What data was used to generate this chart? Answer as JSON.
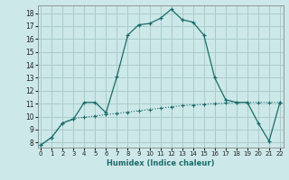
{
  "xlabel": "Humidex (Indice chaleur)",
  "bg_color": "#cde8e8",
  "grid_color": "#aacccc",
  "line_color": "#1a6b6b",
  "x_ticks": [
    0,
    1,
    2,
    3,
    4,
    5,
    6,
    7,
    8,
    9,
    10,
    11,
    12,
    13,
    14,
    15,
    16,
    17,
    18,
    19,
    20,
    21,
    22
  ],
  "y_ticks": [
    8,
    9,
    10,
    11,
    12,
    13,
    14,
    15,
    16,
    17,
    18
  ],
  "xlim": [
    -0.3,
    22.3
  ],
  "ylim": [
    7.6,
    18.6
  ],
  "line1_x": [
    0,
    1,
    2,
    3,
    4,
    5,
    6,
    7,
    8,
    9,
    10,
    11,
    12,
    13,
    14,
    15,
    16,
    17,
    18,
    19,
    20,
    21,
    22
  ],
  "line1_y": [
    7.8,
    8.4,
    9.5,
    9.8,
    11.1,
    11.1,
    10.3,
    13.1,
    16.3,
    17.1,
    17.2,
    17.6,
    18.3,
    17.5,
    17.3,
    16.3,
    13.0,
    11.3,
    11.1,
    11.1,
    9.5,
    8.1,
    11.1
  ],
  "line2_x": [
    0,
    1,
    2,
    3,
    4,
    5,
    6,
    7,
    8,
    9,
    10,
    11,
    12,
    13,
    14,
    15,
    16,
    17,
    18,
    19,
    20,
    21,
    22
  ],
  "line2_y": [
    7.8,
    8.4,
    9.5,
    9.85,
    9.95,
    10.05,
    10.15,
    10.25,
    10.35,
    10.45,
    10.55,
    10.65,
    10.75,
    10.85,
    10.9,
    10.95,
    11.0,
    11.05,
    11.1,
    11.1,
    11.1,
    11.1,
    11.1
  ]
}
